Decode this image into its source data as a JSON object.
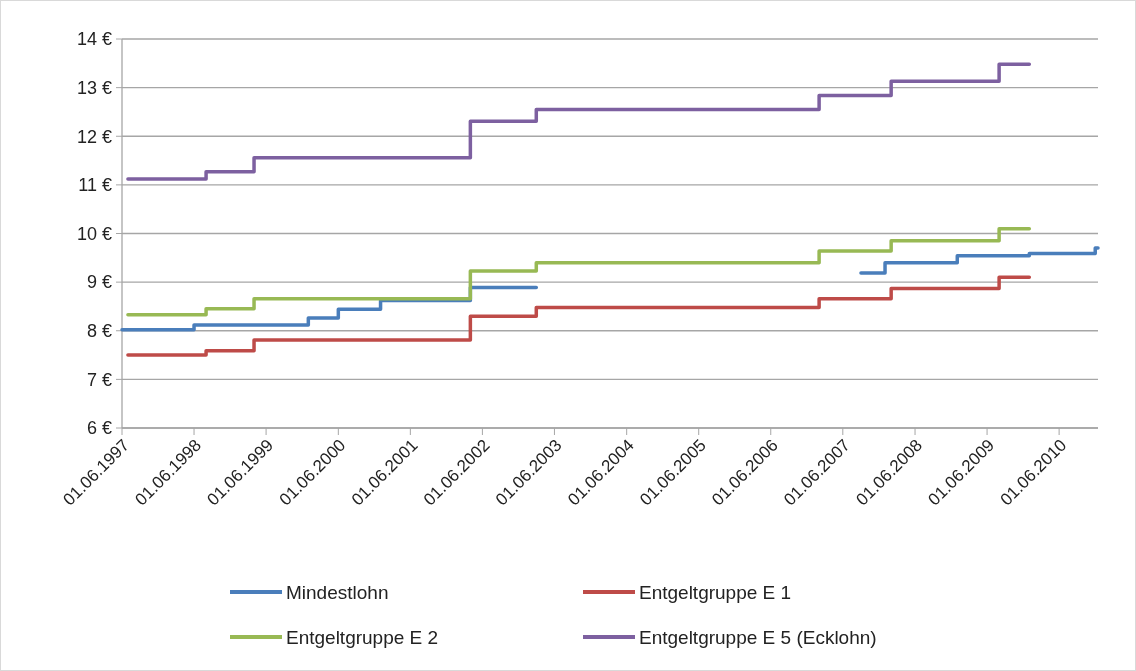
{
  "chart_data": {
    "type": "step",
    "xlim": [
      "1997-06-01",
      "2010-12-15"
    ],
    "ylim": [
      6,
      14
    ],
    "xticks": [
      {
        "value": "1997-06-01",
        "label": "01.06.1997"
      },
      {
        "value": "1998-06-01",
        "label": "01.06.1998"
      },
      {
        "value": "1999-06-01",
        "label": "01.06.1999"
      },
      {
        "value": "2000-06-01",
        "label": "01.06.2000"
      },
      {
        "value": "2001-06-01",
        "label": "01.06.2001"
      },
      {
        "value": "2002-06-01",
        "label": "01.06.2002"
      },
      {
        "value": "2003-06-01",
        "label": "01.06.2003"
      },
      {
        "value": "2004-06-01",
        "label": "01.06.2004"
      },
      {
        "value": "2005-06-01",
        "label": "01.06.2005"
      },
      {
        "value": "2006-06-01",
        "label": "01.06.2006"
      },
      {
        "value": "2007-06-01",
        "label": "01.06.2007"
      },
      {
        "value": "2008-06-01",
        "label": "01.06.2008"
      },
      {
        "value": "2009-06-01",
        "label": "01.06.2009"
      },
      {
        "value": "2010-06-01",
        "label": "01.06.2010"
      }
    ],
    "yticks": [
      {
        "value": 6,
        "label": "6 €"
      },
      {
        "value": 7,
        "label": "7 €"
      },
      {
        "value": 8,
        "label": "8 €"
      },
      {
        "value": 9,
        "label": "9 €"
      },
      {
        "value": 10,
        "label": "10 €"
      },
      {
        "value": 11,
        "label": "11 €"
      },
      {
        "value": 12,
        "label": "12 €"
      },
      {
        "value": 13,
        "label": "13 €"
      },
      {
        "value": 14,
        "label": "14 €"
      }
    ],
    "grid": "y",
    "legend": "bottom",
    "line_style": "solid",
    "series": [
      {
        "name": "Mindestlohn",
        "color": "#4a7ebb",
        "x": [
          "1997-06",
          "1998-06",
          "2000-01",
          "2000-06",
          "2001-01",
          "2002-04",
          "2003-03",
          "2007-09",
          "2008-01",
          "2009-01",
          "2010-01",
          "2010-12",
          "2010-12-15"
        ],
        "values": [
          8.02,
          8.12,
          8.26,
          8.44,
          8.62,
          8.89,
          null,
          9.19,
          9.4,
          9.54,
          9.59,
          9.7,
          9.7
        ]
      },
      {
        "name": "Entgeltgruppe E 1",
        "color": "#be4b48",
        "x": [
          "1997-07",
          "1998-08",
          "1999-04",
          "2002-04",
          "2003-03",
          "2007-02",
          "2008-02",
          "2009-08",
          "2010-01"
        ],
        "values": [
          7.5,
          7.59,
          7.81,
          8.3,
          8.48,
          8.66,
          8.87,
          9.1,
          9.1
        ]
      },
      {
        "name": "Entgeltgruppe E 2",
        "color": "#98b954",
        "x": [
          "1997-07",
          "1998-08",
          "1999-04",
          "2002-04",
          "2003-03",
          "2007-02",
          "2008-02",
          "2009-08",
          "2010-01"
        ],
        "values": [
          8.33,
          8.45,
          8.66,
          9.23,
          9.4,
          9.64,
          9.85,
          10.1,
          10.1
        ]
      },
      {
        "name": "Entgeltgruppe E 5 (Ecklohn)",
        "color": "#7d60a0",
        "x": [
          "1997-07",
          "1998-08",
          "1999-04",
          "2002-04",
          "2003-03",
          "2007-02",
          "2008-02",
          "2009-08",
          "2010-01"
        ],
        "values": [
          11.12,
          11.27,
          11.56,
          12.31,
          12.55,
          12.84,
          13.13,
          13.48,
          13.48
        ]
      }
    ]
  }
}
